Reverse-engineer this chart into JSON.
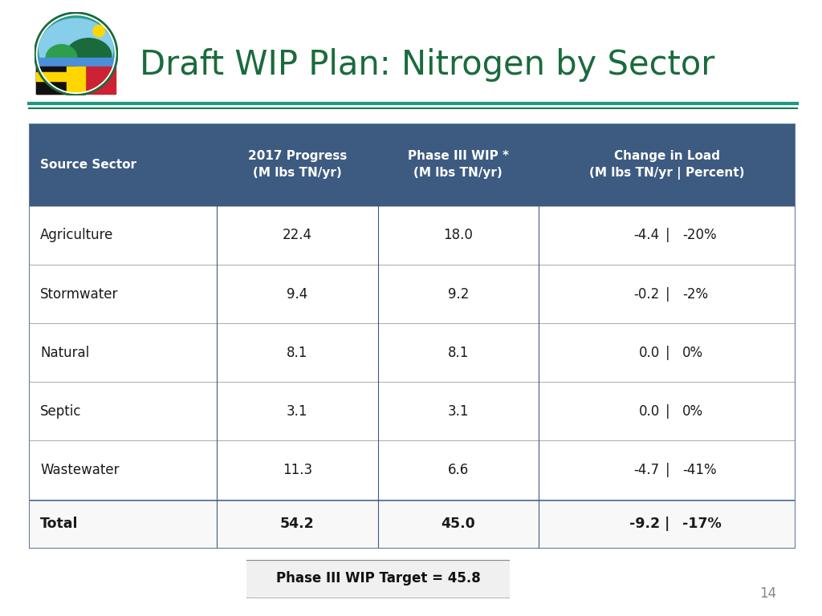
{
  "title": "Draft WIP Plan: Nitrogen by Sector",
  "title_color": "#1a6b3c",
  "title_fontsize": 30,
  "header_bg_color": "#3d5a80",
  "header_text_color": "#ffffff",
  "row_bg_color": "#ffffff",
  "table_border_color": "#5a7a9a",
  "columns": [
    "Source Sector",
    "2017 Progress\n(M lbs TN/yr)",
    "Phase III WIP *\n(M lbs TN/yr)",
    "Change in Load\n(M lbs TN/yr | Percent)"
  ],
  "rows": [
    [
      "Agriculture",
      "22.4",
      "18.0",
      "-4.4",
      "|",
      "-20%"
    ],
    [
      "Stormwater",
      "9.4",
      "9.2",
      "-0.2",
      "|",
      "-2%"
    ],
    [
      "Natural",
      "8.1",
      "8.1",
      "0.0",
      "|",
      "0%"
    ],
    [
      "Septic",
      "3.1",
      "3.1",
      "0.0",
      "|",
      "0%"
    ],
    [
      "Wastewater",
      "11.3",
      "6.6",
      "-4.7",
      "|",
      "-41%"
    ]
  ],
  "total_row": [
    "Total",
    "54.2",
    "45.0",
    "-9.2",
    "|",
    "-17%"
  ],
  "footnote": "Phase III WIP Target = 45.8",
  "page_number": "14",
  "green_line_color": "#1a7a50",
  "teal_line_color": "#1a9a80",
  "background_color": "#ffffff"
}
